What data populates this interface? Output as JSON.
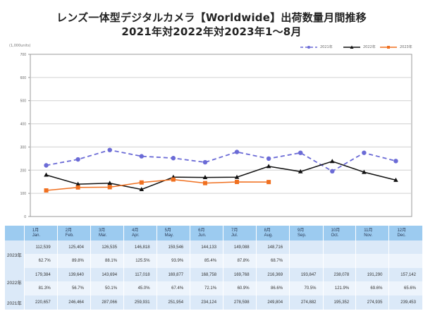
{
  "title_line1": "レンズ一体型デジタルカメラ【Worldwide】出荷数量月間推移",
  "title_line2": "2021年対2022年対2023年1～8月",
  "unit_label": "(1,000units)",
  "colors": {
    "y2021": "#6b6bd6",
    "y2022": "#111111",
    "y2023": "#f07020",
    "grid": "#d0d0d0",
    "axis": "#9a9a9a"
  },
  "chart_data": {
    "type": "line",
    "title": "レンズ一体型デジタルカメラ【Worldwide】出荷数量月間推移 2021年対2022年対2023年1～8月",
    "ylabel": "(1,000units)",
    "xlabel": "",
    "ylim": [
      0,
      700
    ],
    "yticks": [
      0,
      100,
      200,
      300,
      400,
      500,
      600,
      700
    ],
    "grid": true,
    "legend_position": "top-right",
    "categories": [
      "Jan.",
      "Feb.",
      "Mar.",
      "Apr.",
      "May.",
      "Jun.",
      "Jul.",
      "Aug.",
      "Sep.",
      "Oct.",
      "Nov.",
      "Dec."
    ],
    "series": [
      {
        "name": "2021年",
        "style": "dashed",
        "marker": "circle",
        "values": [
          220.657,
          246.464,
          287.066,
          259.931,
          251.954,
          234.124,
          278.598,
          249.804,
          274.882,
          195.352,
          274.935,
          239.453
        ]
      },
      {
        "name": "2022年",
        "style": "solid",
        "marker": "triangle",
        "values": [
          179.384,
          139.64,
          143.694,
          117.018,
          169.877,
          168.758,
          169.768,
          216.369,
          193.847,
          238.078,
          191.29,
          157.142
        ]
      },
      {
        "name": "2023年",
        "style": "solid",
        "marker": "square",
        "values": [
          112.539,
          125.404,
          126.535,
          146.818,
          159.546,
          144.133,
          149.088,
          148.716
        ]
      }
    ]
  },
  "table": {
    "months": [
      {
        "jp": "1月",
        "en": "Jan."
      },
      {
        "jp": "2月",
        "en": "Feb."
      },
      {
        "jp": "3月",
        "en": "Mar."
      },
      {
        "jp": "4月",
        "en": "Apr."
      },
      {
        "jp": "5月",
        "en": "May."
      },
      {
        "jp": "6月",
        "en": "Jun."
      },
      {
        "jp": "7月",
        "en": "Jul."
      },
      {
        "jp": "8月",
        "en": "Aug."
      },
      {
        "jp": "9月",
        "en": "Sep."
      },
      {
        "jp": "10月",
        "en": "Oct."
      },
      {
        "jp": "11月",
        "en": "Nov."
      },
      {
        "jp": "12月",
        "en": "Dec."
      }
    ],
    "rows": {
      "y2023": {
        "label": "2023年",
        "values": [
          "112,539",
          "125,404",
          "126,535",
          "146,818",
          "159,546",
          "144,133",
          "149,088",
          "148,716",
          "",
          "",
          "",
          ""
        ],
        "pct": [
          "62.7%",
          "89.8%",
          "88.1%",
          "125.5%",
          "93.9%",
          "85.4%",
          "87.8%",
          "68.7%",
          "",
          "",
          "",
          ""
        ]
      },
      "y2022": {
        "label": "2022年",
        "values": [
          "179,384",
          "139,640",
          "143,694",
          "117,018",
          "169,877",
          "168,758",
          "169,768",
          "216,369",
          "193,847",
          "238,078",
          "191,290",
          "157,142"
        ],
        "pct": [
          "81.3%",
          "56.7%",
          "50.1%",
          "45.0%",
          "67.4%",
          "72.1%",
          "60.9%",
          "86.6%",
          "70.5%",
          "121.9%",
          "69.6%",
          "65.6%"
        ]
      },
      "y2021": {
        "label": "2021年",
        "values": [
          "220,657",
          "246,464",
          "287,066",
          "259,931",
          "251,954",
          "234,124",
          "278,598",
          "249,804",
          "274,882",
          "195,352",
          "274,935",
          "239,453"
        ]
      }
    }
  }
}
